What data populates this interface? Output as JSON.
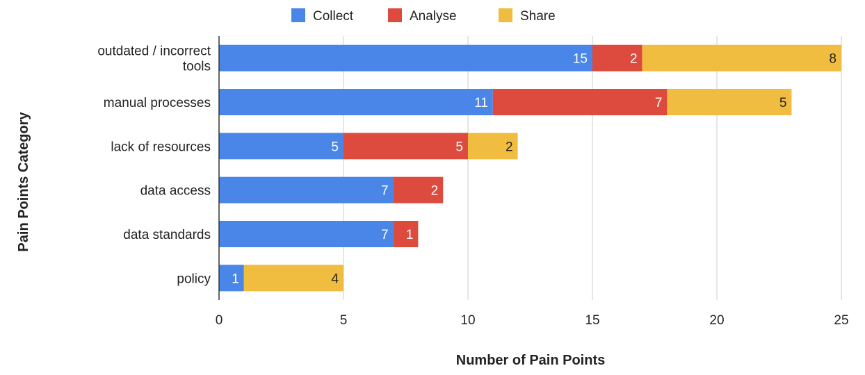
{
  "chart_data": {
    "type": "bar",
    "orientation": "horizontal",
    "stacked": true,
    "categories": [
      [
        "outdated / incorrect",
        "tools"
      ],
      [
        "manual processes"
      ],
      [
        "lack of resources"
      ],
      [
        "data access"
      ],
      [
        "data standards"
      ],
      [
        "policy"
      ]
    ],
    "series": [
      {
        "name": "Collect",
        "color": "#4a86e8",
        "label_color": "#ffffff",
        "values": [
          15,
          11,
          5,
          7,
          7,
          1
        ]
      },
      {
        "name": "Analyse",
        "color": "#dd4b3e",
        "label_color": "#ffffff",
        "values": [
          2,
          7,
          5,
          2,
          1,
          0
        ]
      },
      {
        "name": "Share",
        "color": "#f1bd40",
        "label_color": "#222222",
        "values": [
          8,
          5,
          2,
          0,
          0,
          4
        ]
      }
    ],
    "xlim": [
      0,
      25
    ],
    "xticks": [
      0,
      5,
      10,
      15,
      20,
      25
    ],
    "xlabel": "Number of Pain Points",
    "ylabel": "Pain Points Category",
    "grid": "vertical",
    "legend_position": "top"
  }
}
